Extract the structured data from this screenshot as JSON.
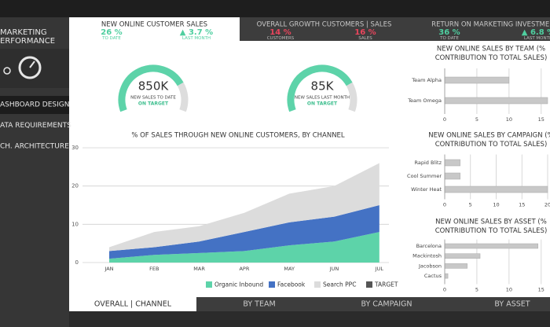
{
  "sidebar": {
    "title_lines": [
      "MARKETING",
      "ERFORMANCE"
    ],
    "menu": [
      "ASHBOARD DESIGN",
      "ATA REQUIREMENTS",
      "CH. ARCHITECTURE"
    ]
  },
  "kpi_tabs": [
    {
      "title": "NEW ONLINE CUSTOMER SALES",
      "metrics": [
        {
          "value": "26 %",
          "label": "TO DATE",
          "color": "#4fcfa0"
        },
        {
          "value": "▲ 3.7 %",
          "label": "LAST MONTH",
          "color": "#4fcfa0"
        }
      ]
    },
    {
      "title": "OVERALL GROWTH CUSTOMERS | SALES",
      "metrics": [
        {
          "value": "14 %",
          "label": "CUSTOMERS",
          "color": "#e8455c"
        },
        {
          "value": "16 %",
          "label": "SALES",
          "color": "#e8455c"
        }
      ]
    },
    {
      "title": "RETURN ON MARKETING INVESTMENT",
      "metrics": [
        {
          "value": "36 %",
          "label": "TO DATE",
          "color": "#4fcfa0"
        },
        {
          "value": "▲ 6.8 %",
          "label": "LAST MONTH",
          "color": "#4fcfa0"
        }
      ]
    }
  ],
  "gauges": [
    {
      "value": "850K",
      "label": "NEW SALES TO DATE",
      "status": "ON TARGET"
    },
    {
      "value": "85K",
      "label": "NEW SALES LAST MONTH",
      "status": "ON TARGET"
    }
  ],
  "bottom_tabs": [
    "OVERALL | CHANNEL",
    "BY TEAM",
    "BY CAMPAIGN",
    "BY ASSET"
  ],
  "chart_data": [
    {
      "type": "area",
      "stacked": true,
      "title": "% OF SALES THROUGH NEW ONLINE CUSTOMERS, BY CHANNEL",
      "categories": [
        "JAN",
        "FEB",
        "MAR",
        "APR",
        "MAY",
        "JUN",
        "JUL"
      ],
      "series": [
        {
          "name": "Organic Inbound",
          "color": "#5dd3a9",
          "values": [
            1,
            2,
            2.5,
            3,
            4.5,
            5.5,
            8
          ]
        },
        {
          "name": "Facebook",
          "color": "#4472c4",
          "values": [
            2,
            2,
            3,
            5,
            6,
            6.5,
            7
          ]
        },
        {
          "name": "Search PPC",
          "color": "#dcdcdc",
          "values": [
            1,
            4,
            4,
            5,
            7.5,
            8,
            11
          ]
        },
        {
          "name": "TARGET",
          "color": "#555555",
          "values": [
            null,
            null,
            null,
            null,
            null,
            null,
            null
          ]
        }
      ],
      "ylim": [
        0,
        30
      ],
      "yticks": [
        0,
        10,
        20,
        30
      ],
      "grid": true
    },
    {
      "type": "barh",
      "title": [
        "NEW ONLINE SALES BY TEAM (%",
        "CONTRIBUTION TO TOTAL SALES)"
      ],
      "categories": [
        "Team Alpha",
        "Team Omega"
      ],
      "values": [
        10,
        16
      ],
      "color": "#c8c8c8",
      "xlim": [
        0,
        16
      ],
      "xticks": [
        0,
        5,
        10,
        15
      ],
      "grid": true
    },
    {
      "type": "barh",
      "title": [
        "NEW ONLINE SALES BY CAMPAIGN (%",
        "CONTRIBUTION TO TOTAL SALES)"
      ],
      "categories": [
        "Rapid Blitz",
        "Cool Summer",
        "Winter Heat"
      ],
      "values": [
        3,
        3,
        20
      ],
      "color": "#c8c8c8",
      "xlim": [
        0,
        20
      ],
      "xticks": [
        0,
        5,
        10,
        15,
        20
      ],
      "grid": true
    },
    {
      "type": "barh",
      "title": [
        "NEW ONLINE SALES BY ASSET (%",
        "CONTRIBUTION TO TOTAL SALES)"
      ],
      "categories": [
        "Barcelona",
        "Mackintosh",
        "Jacobson",
        "Cactus"
      ],
      "values": [
        14.5,
        5.5,
        3.5,
        0.5
      ],
      "color": "#c8c8c8",
      "xlim": [
        0,
        16
      ],
      "xticks": [
        0,
        5,
        10,
        15
      ],
      "grid": true
    }
  ]
}
